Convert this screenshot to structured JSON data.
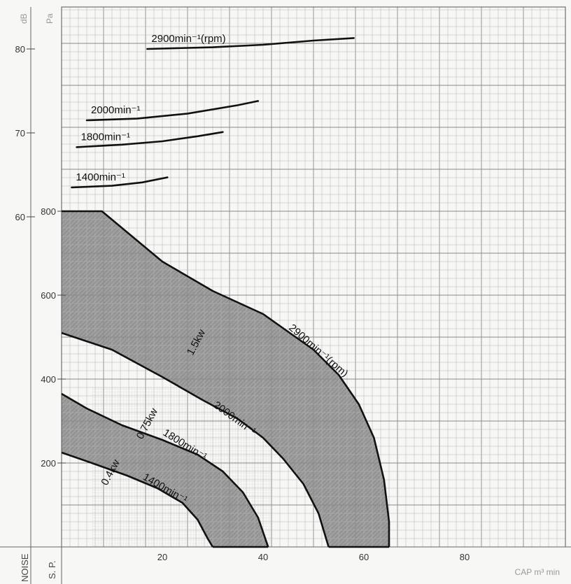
{
  "chart_data": {
    "type": "line",
    "x_unit": "m³/min",
    "xlabel": "CAP m³ min",
    "x_ticks": [
      20,
      40,
      60,
      80
    ],
    "xlim": [
      0,
      100
    ],
    "pressure_axis": {
      "unit": "Pa",
      "row_label": "S. P.",
      "ticks": [
        200,
        400,
        600,
        800
      ],
      "ylim": [
        0,
        1000
      ]
    },
    "noise_axis": {
      "unit": "dB",
      "row_label": "NOISE",
      "ticks": [
        60,
        70,
        80
      ]
    },
    "pressure_curves": [
      {
        "label": "2900min⁻¹(rpm)",
        "points": [
          [
            0,
            800
          ],
          [
            8,
            800
          ],
          [
            14,
            740
          ],
          [
            20,
            680
          ],
          [
            30,
            610
          ],
          [
            40,
            555
          ],
          [
            50,
            470
          ],
          [
            55,
            410
          ],
          [
            59,
            340
          ],
          [
            62,
            260
          ],
          [
            64,
            160
          ],
          [
            65,
            60
          ],
          [
            65,
            0
          ]
        ]
      },
      {
        "label": "2000min⁻¹",
        "points": [
          [
            0,
            510
          ],
          [
            10,
            470
          ],
          [
            20,
            405
          ],
          [
            28,
            350
          ],
          [
            35,
            305
          ],
          [
            40,
            260
          ],
          [
            44,
            210
          ],
          [
            48,
            150
          ],
          [
            51,
            80
          ],
          [
            53,
            0
          ]
        ]
      },
      {
        "label": "1800min⁻¹",
        "points": [
          [
            0,
            365
          ],
          [
            5,
            330
          ],
          [
            12,
            290
          ],
          [
            20,
            255
          ],
          [
            27,
            220
          ],
          [
            32,
            180
          ],
          [
            36,
            130
          ],
          [
            39,
            70
          ],
          [
            41,
            0
          ]
        ]
      },
      {
        "label": "1400min⁻¹",
        "points": [
          [
            0,
            225
          ],
          [
            6,
            200
          ],
          [
            13,
            170
          ],
          [
            19,
            140
          ],
          [
            24,
            105
          ],
          [
            27,
            65
          ],
          [
            29,
            20
          ],
          [
            30,
            0
          ]
        ]
      }
    ],
    "noise_curves": [
      {
        "label": "2900min⁻¹(rpm)",
        "points": [
          [
            17,
            80
          ],
          [
            30,
            80.2
          ],
          [
            40,
            80.5
          ],
          [
            50,
            81
          ],
          [
            58,
            81.3
          ]
        ]
      },
      {
        "label": "2000min⁻¹",
        "points": [
          [
            5,
            71.5
          ],
          [
            15,
            71.7
          ],
          [
            25,
            72.3
          ],
          [
            35,
            73.3
          ],
          [
            39,
            73.8
          ]
        ]
      },
      {
        "label": "1800min⁻¹",
        "points": [
          [
            3,
            68.3
          ],
          [
            12,
            68.6
          ],
          [
            20,
            69
          ],
          [
            27,
            69.6
          ],
          [
            32,
            70.1
          ]
        ]
      },
      {
        "label": "1400min⁻¹",
        "points": [
          [
            2,
            63.5
          ],
          [
            10,
            63.7
          ],
          [
            16,
            64.1
          ],
          [
            21,
            64.7
          ]
        ]
      }
    ],
    "power_regions": [
      {
        "label": "1.5kw",
        "between": [
          "2900min⁻¹(rpm)",
          "2000min⁻¹"
        ],
        "fill": "#a0a0a0"
      },
      {
        "label": "0.75kw",
        "between": [
          "2000min⁻¹",
          "1800min⁻¹"
        ],
        "fill": "none"
      },
      {
        "label": "0.4kw",
        "between": [
          "1800min⁻¹",
          "1400min⁻¹"
        ],
        "fill": "#a0a0a0"
      }
    ]
  }
}
